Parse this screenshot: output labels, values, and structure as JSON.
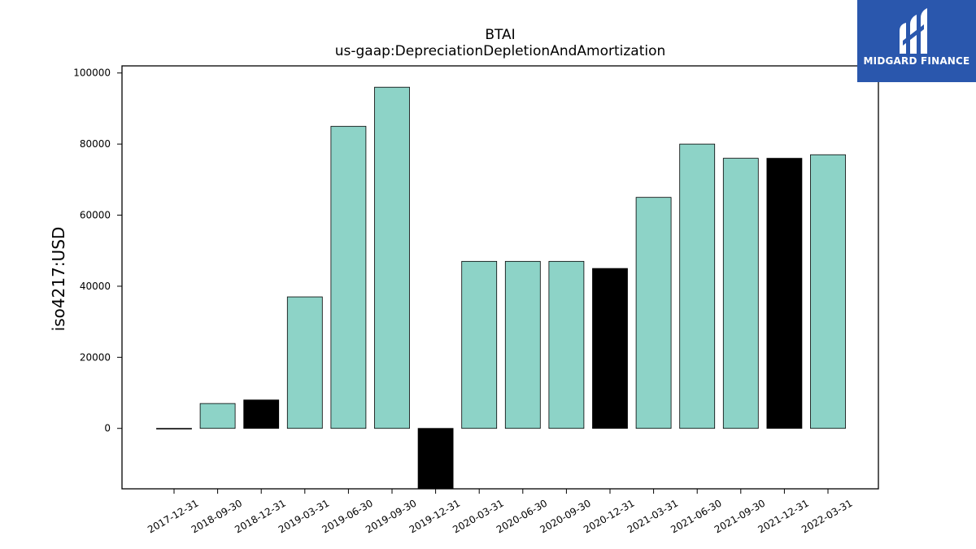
{
  "chart_data": {
    "type": "bar",
    "title": "BTAI",
    "subtitle": "us-gaap:DepreciationDepletionAndAmortization",
    "xlabel": "",
    "ylabel": "iso4217:USD",
    "ylim": [
      -17000,
      102000
    ],
    "yticks": [
      0,
      20000,
      40000,
      60000,
      80000,
      100000
    ],
    "grid": false,
    "categories": [
      "2017-12-31",
      "2018-09-30",
      "2018-12-31",
      "2019-03-31",
      "2019-06-30",
      "2019-09-30",
      "2019-12-31",
      "2020-03-31",
      "2020-06-30",
      "2020-09-30",
      "2020-12-31",
      "2021-03-31",
      "2021-06-30",
      "2021-09-30",
      "2021-12-31",
      "2022-03-31"
    ],
    "values": [
      0,
      7000,
      8000,
      37000,
      85000,
      96000,
      -17000,
      47000,
      47000,
      47000,
      45000,
      65000,
      80000,
      76000,
      76000,
      77000
    ],
    "bar_colors": [
      "#8dd3c7",
      "#8dd3c7",
      "#000000",
      "#8dd3c7",
      "#8dd3c7",
      "#8dd3c7",
      "#000000",
      "#8dd3c7",
      "#8dd3c7",
      "#8dd3c7",
      "#000000",
      "#8dd3c7",
      "#8dd3c7",
      "#8dd3c7",
      "#000000",
      "#8dd3c7"
    ]
  },
  "logo": {
    "text": "MIDGARD FINANCE",
    "background": "#2a57ad",
    "icon": "midgard-logo-icon"
  }
}
